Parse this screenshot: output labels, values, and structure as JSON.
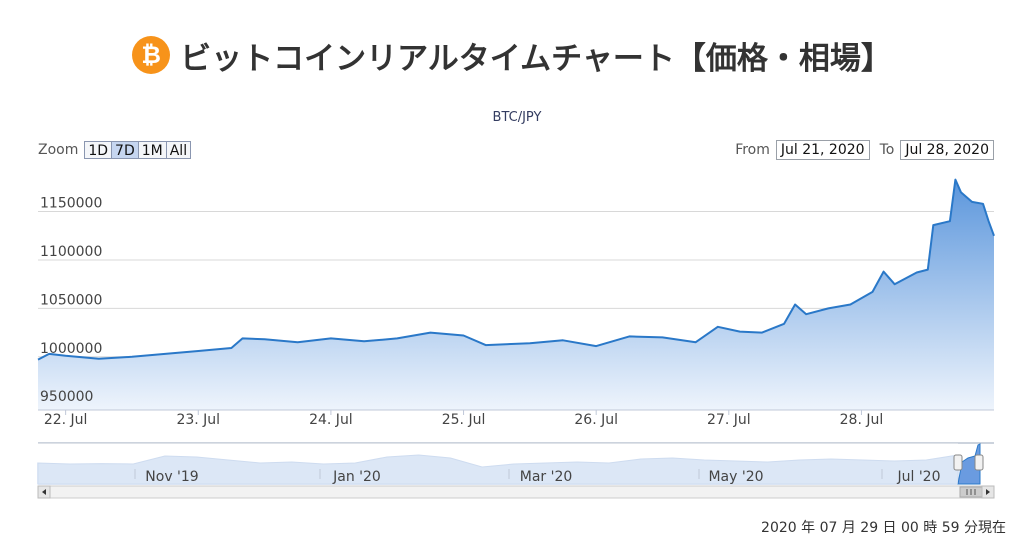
{
  "header": {
    "logo_glyph": "₿",
    "title": "ビットコインリアルタイムチャート【価格・相場】"
  },
  "pair": "BTC/JPY",
  "zoom": {
    "label": "Zoom",
    "buttons": [
      "1D",
      "7D",
      "1M",
      "All"
    ],
    "active": "7D"
  },
  "range": {
    "from_label": "From",
    "from_value": "Jul 21, 2020",
    "to_label": "To",
    "to_value": "Jul 28, 2020"
  },
  "timestamp": "2020 年 07 月 29 日  00 時 59 分現在",
  "colors": {
    "line": "#2a78c8",
    "fill_top": "#5b96dc",
    "fill_bottom": "#eef4fc",
    "grid": "#d8d8d8",
    "navigator_fill": "#c9daf1"
  },
  "chart_data": {
    "type": "area",
    "series_name": "BTC/JPY",
    "x_ticks": [
      "22. Jul",
      "23. Jul",
      "24. Jul",
      "25. Jul",
      "26. Jul",
      "27. Jul",
      "28. Jul"
    ],
    "y_ticks": [
      950000,
      1000000,
      1050000,
      1100000,
      1150000
    ],
    "ylim": [
      945000,
      1195000
    ],
    "xlim_days": [
      "2020-07-21 19:00",
      "2020-07-28 23:59"
    ],
    "grid": true,
    "points": [
      [
        "2020-07-21 19:00",
        997000
      ],
      [
        "2020-07-21 21:00",
        1003000
      ],
      [
        "2020-07-22 00:00",
        1001000
      ],
      [
        "2020-07-22 06:00",
        998000
      ],
      [
        "2020-07-22 12:00",
        1000000
      ],
      [
        "2020-07-22 18:00",
        1003000
      ],
      [
        "2020-07-23 00:00",
        1006000
      ],
      [
        "2020-07-23 06:00",
        1009000
      ],
      [
        "2020-07-23 08:00",
        1019000
      ],
      [
        "2020-07-23 12:00",
        1018000
      ],
      [
        "2020-07-23 18:00",
        1015000
      ],
      [
        "2020-07-24 00:00",
        1019000
      ],
      [
        "2020-07-24 06:00",
        1016000
      ],
      [
        "2020-07-24 12:00",
        1019000
      ],
      [
        "2020-07-24 18:00",
        1025000
      ],
      [
        "2020-07-25 00:00",
        1022000
      ],
      [
        "2020-07-25 04:00",
        1012000
      ],
      [
        "2020-07-25 12:00",
        1014000
      ],
      [
        "2020-07-25 18:00",
        1017000
      ],
      [
        "2020-07-26 00:00",
        1011000
      ],
      [
        "2020-07-26 06:00",
        1021000
      ],
      [
        "2020-07-26 12:00",
        1020000
      ],
      [
        "2020-07-26 18:00",
        1015000
      ],
      [
        "2020-07-26 22:00",
        1031000
      ],
      [
        "2020-07-27 02:00",
        1026000
      ],
      [
        "2020-07-27 06:00",
        1025000
      ],
      [
        "2020-07-27 10:00",
        1034000
      ],
      [
        "2020-07-27 12:00",
        1054000
      ],
      [
        "2020-07-27 14:00",
        1044000
      ],
      [
        "2020-07-27 18:00",
        1050000
      ],
      [
        "2020-07-27 22:00",
        1054000
      ],
      [
        "2020-07-28 02:00",
        1067000
      ],
      [
        "2020-07-28 04:00",
        1088000
      ],
      [
        "2020-07-28 06:00",
        1075000
      ],
      [
        "2020-07-28 10:00",
        1087000
      ],
      [
        "2020-07-28 12:00",
        1090000
      ],
      [
        "2020-07-28 13:00",
        1136000
      ],
      [
        "2020-07-28 16:00",
        1140000
      ],
      [
        "2020-07-28 17:00",
        1183000
      ],
      [
        "2020-07-28 18:00",
        1170000
      ],
      [
        "2020-07-28 20:00",
        1160000
      ],
      [
        "2020-07-28 22:00",
        1158000
      ],
      [
        "2020-07-28 23:00",
        1140000
      ],
      [
        "2020-07-28 23:59",
        1125000
      ]
    ]
  },
  "navigator": {
    "x_ticks": [
      "Nov '19",
      "Jan '20",
      "Mar '20",
      "May '20",
      "Jul '20"
    ],
    "levels": [
      0.55,
      0.5,
      0.52,
      0.5,
      0.9,
      0.85,
      0.7,
      0.55,
      0.6,
      0.5,
      0.55,
      0.85,
      0.95,
      0.8,
      0.35,
      0.5,
      0.55,
      0.6,
      0.55,
      0.75,
      0.8,
      0.7,
      0.65,
      0.6,
      0.7,
      0.75,
      0.7,
      0.65,
      0.7,
      0.95
    ],
    "selected_range": [
      "Jul 21, 2020",
      "Jul 28, 2020"
    ]
  }
}
